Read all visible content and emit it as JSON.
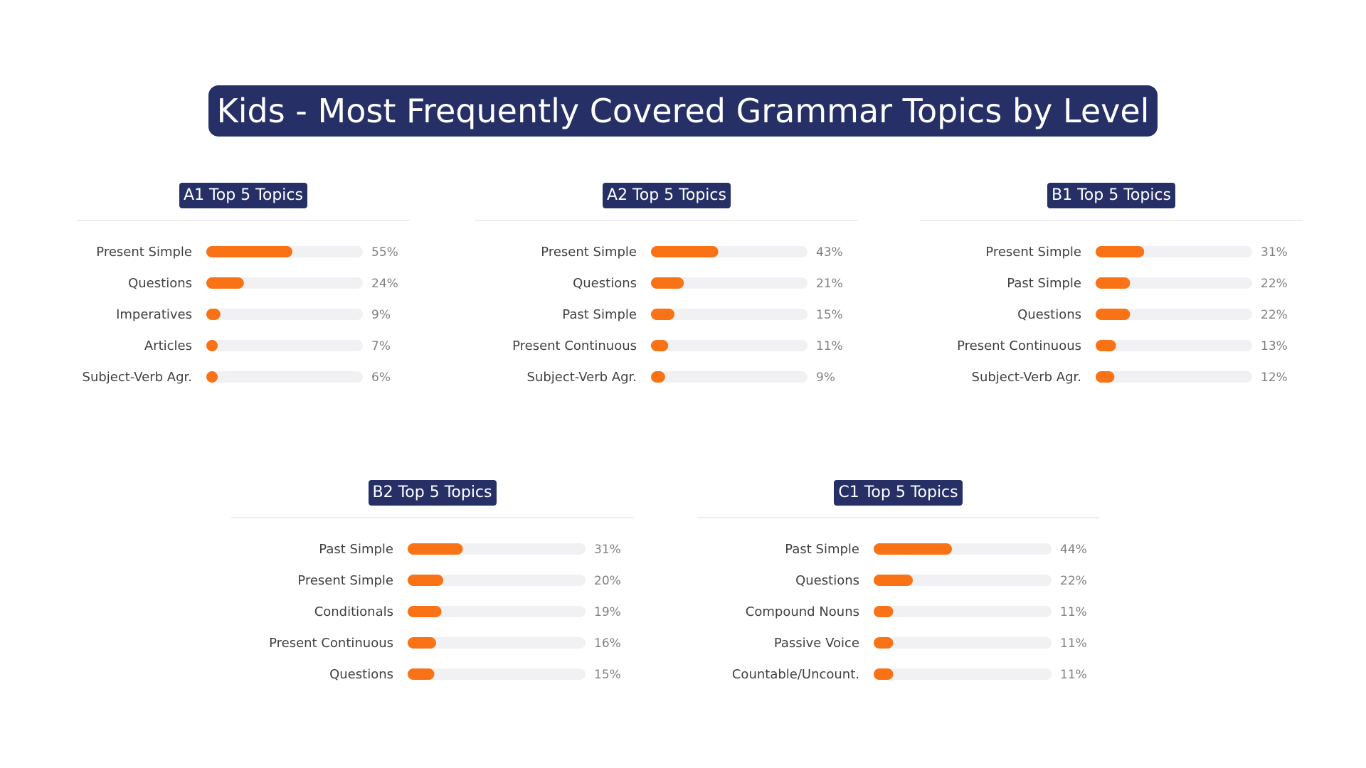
{
  "title": "Kids - Most Frequently Covered Grammar Topics by Level",
  "colors": {
    "title_bg": "#263066",
    "title_text": "#ffffff",
    "bar": "#F97316",
    "track": "#F1F1F3",
    "divider": "#EEEEEE",
    "category_text": "#404040",
    "value_text": "#808080"
  },
  "chart_data": [
    {
      "type": "bar",
      "orientation": "horizontal",
      "title": "A1 Top 5 Topics",
      "categories": [
        "Present Simple",
        "Questions",
        "Imperatives",
        "Articles",
        "Subject-Verb Agr."
      ],
      "values": [
        55,
        24,
        9,
        7,
        6
      ],
      "value_labels": [
        "55%",
        "24%",
        "9%",
        "7%",
        "6%"
      ],
      "xlim": [
        0,
        100
      ]
    },
    {
      "type": "bar",
      "orientation": "horizontal",
      "title": "A2 Top 5 Topics",
      "categories": [
        "Present Simple",
        "Questions",
        "Past Simple",
        "Present Continuous",
        "Subject-Verb Agr."
      ],
      "values": [
        43,
        21,
        15,
        11,
        9
      ],
      "value_labels": [
        "43%",
        "21%",
        "15%",
        "11%",
        "9%"
      ],
      "xlim": [
        0,
        100
      ]
    },
    {
      "type": "bar",
      "orientation": "horizontal",
      "title": "B1 Top 5 Topics",
      "categories": [
        "Present Simple",
        "Past Simple",
        "Questions",
        "Present Continuous",
        "Subject-Verb Agr."
      ],
      "values": [
        31,
        22,
        22,
        13,
        12
      ],
      "value_labels": [
        "31%",
        "22%",
        "22%",
        "13%",
        "12%"
      ],
      "xlim": [
        0,
        100
      ]
    },
    {
      "type": "bar",
      "orientation": "horizontal",
      "title": "B2 Top 5 Topics",
      "categories": [
        "Past Simple",
        "Present Simple",
        "Conditionals",
        "Present Continuous",
        "Questions"
      ],
      "values": [
        31,
        20,
        19,
        16,
        15
      ],
      "value_labels": [
        "31%",
        "20%",
        "19%",
        "16%",
        "15%"
      ],
      "xlim": [
        0,
        100
      ]
    },
    {
      "type": "bar",
      "orientation": "horizontal",
      "title": "C1 Top 5 Topics",
      "categories": [
        "Past Simple",
        "Questions",
        "Compound Nouns",
        "Passive Voice",
        "Countable/Uncount."
      ],
      "values": [
        44,
        22,
        11,
        11,
        11
      ],
      "value_labels": [
        "44%",
        "22%",
        "11%",
        "11%",
        "11%"
      ],
      "xlim": [
        0,
        100
      ]
    }
  ]
}
